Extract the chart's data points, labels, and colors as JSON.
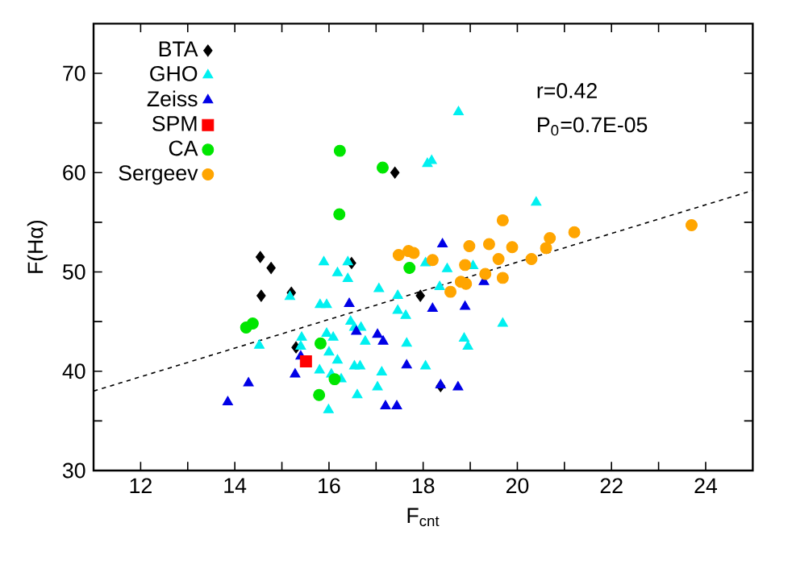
{
  "chart_data": {
    "type": "scatter",
    "xlabel": "F$_{cnt}$",
    "ylabel": "F(Hα)",
    "xlim": [
      11,
      25
    ],
    "ylim": [
      30,
      75
    ],
    "xticks": [
      {
        "value": 11,
        "label": null
      },
      12,
      {
        "value": 13,
        "label": null
      },
      14,
      {
        "value": 15,
        "label": null
      },
      16,
      {
        "value": 17,
        "label": null
      },
      18,
      {
        "value": 19,
        "label": null
      },
      20,
      {
        "value": 21,
        "label": null
      },
      22,
      {
        "value": 23,
        "label": null
      },
      24
    ],
    "yticks": [
      30,
      {
        "value": 35,
        "label": null
      },
      40,
      {
        "value": 45,
        "label": null
      },
      50,
      {
        "value": 55,
        "label": null
      },
      60,
      {
        "value": 65,
        "label": null
      },
      70
    ],
    "legend": "top left",
    "annotations": [
      "r=0.42",
      "P$_{0}$=0.7E-05"
    ],
    "series": [
      {
        "name": "BTA",
        "color": "#000000",
        "marker": "diamond",
        "x": [
          17.4,
          14.54,
          14.77,
          16.48,
          14.56,
          15.2,
          15.3,
          17.94,
          18.37
        ],
        "values": [
          60,
          51.5,
          50.4,
          50.9,
          47.6,
          47.9,
          42.4,
          47.6,
          38.5
        ]
      },
      {
        "name": "GHO",
        "color": "#00f0f0",
        "marker": "triangle",
        "x": [
          18.75,
          18.09,
          18.18,
          20.4,
          15.89,
          16.18,
          16.4,
          16.4,
          17.06,
          17.46,
          15.17,
          15.81,
          15.95,
          16.46,
          16.54,
          16.68,
          16.77,
          14.52,
          15.42,
          15.4,
          15.95,
          16.09,
          16.0,
          16.18,
          15.8,
          16.05,
          16.26,
          16.54,
          16.66,
          17.12,
          17.03,
          16.6,
          15.99,
          18.05,
          18.51,
          19.06,
          18.35,
          17.46,
          17.63,
          17.65,
          18.87,
          18.95,
          19.69,
          18.05
        ],
        "values": [
          66.1,
          60.9,
          61.2,
          57,
          51,
          49.9,
          49.3,
          51,
          48.3,
          47.6,
          47.5,
          46.7,
          46.7,
          45,
          44.4,
          44.4,
          43,
          42.6,
          43.4,
          42.5,
          43.8,
          43.4,
          41.9,
          41.1,
          40.1,
          39.7,
          39.2,
          40.5,
          40.5,
          39.9,
          38.4,
          37.6,
          36.1,
          50.9,
          50.3,
          50.6,
          48.5,
          46.1,
          45.6,
          42.8,
          43.3,
          42.5,
          44.8,
          40.5
        ]
      },
      {
        "name": "Zeiss",
        "color": "#0000e6",
        "marker": "triangle",
        "x": [
          13.85,
          14.29,
          15.28,
          15.4,
          16.43,
          16.58,
          17.03,
          17.15,
          17.2,
          17.44,
          18.41,
          19.29,
          18.2,
          18.89,
          17.65,
          18.37,
          18.74
        ],
        "values": [
          36.9,
          38.8,
          39.7,
          41.5,
          46.8,
          44,
          43.7,
          43,
          36.5,
          36.5,
          52.8,
          49,
          46.3,
          46.5,
          40.6,
          38.6,
          38.4
        ]
      },
      {
        "name": "SPM",
        "color": "#ff0000",
        "marker": "square",
        "x": [
          15.51
        ],
        "values": [
          41
        ]
      },
      {
        "name": "CA",
        "color": "#00e600",
        "marker": "circle",
        "x": [
          16.23,
          17.14,
          16.22,
          14.24,
          14.38,
          15.82,
          16.12,
          15.79,
          17.71
        ],
        "values": [
          62.2,
          60.5,
          55.8,
          44.4,
          44.8,
          42.8,
          39.2,
          37.6,
          50.4
        ]
      },
      {
        "name": "Sergeev",
        "color": "#ffa500",
        "marker": "circle",
        "x": [
          17.48,
          17.69,
          17.8,
          18.2,
          18.98,
          19.4,
          19.89,
          19.69,
          20.69,
          21.21,
          23.7,
          18.89,
          19.6,
          20.3,
          20.61,
          19.32,
          19.69,
          18.8,
          18.91,
          18.58
        ],
        "values": [
          51.7,
          52.1,
          51.9,
          51.2,
          52.6,
          52.8,
          52.5,
          55.2,
          53.4,
          54,
          54.7,
          50.7,
          51.3,
          51.3,
          52.4,
          49.8,
          49.4,
          49,
          48.8,
          48
        ]
      },
      {
        "type": "line",
        "color": "#000000",
        "line_style": "dashed",
        "marker": "none",
        "x": [
          11,
          25
        ],
        "values": [
          38,
          58.2
        ]
      }
    ]
  }
}
